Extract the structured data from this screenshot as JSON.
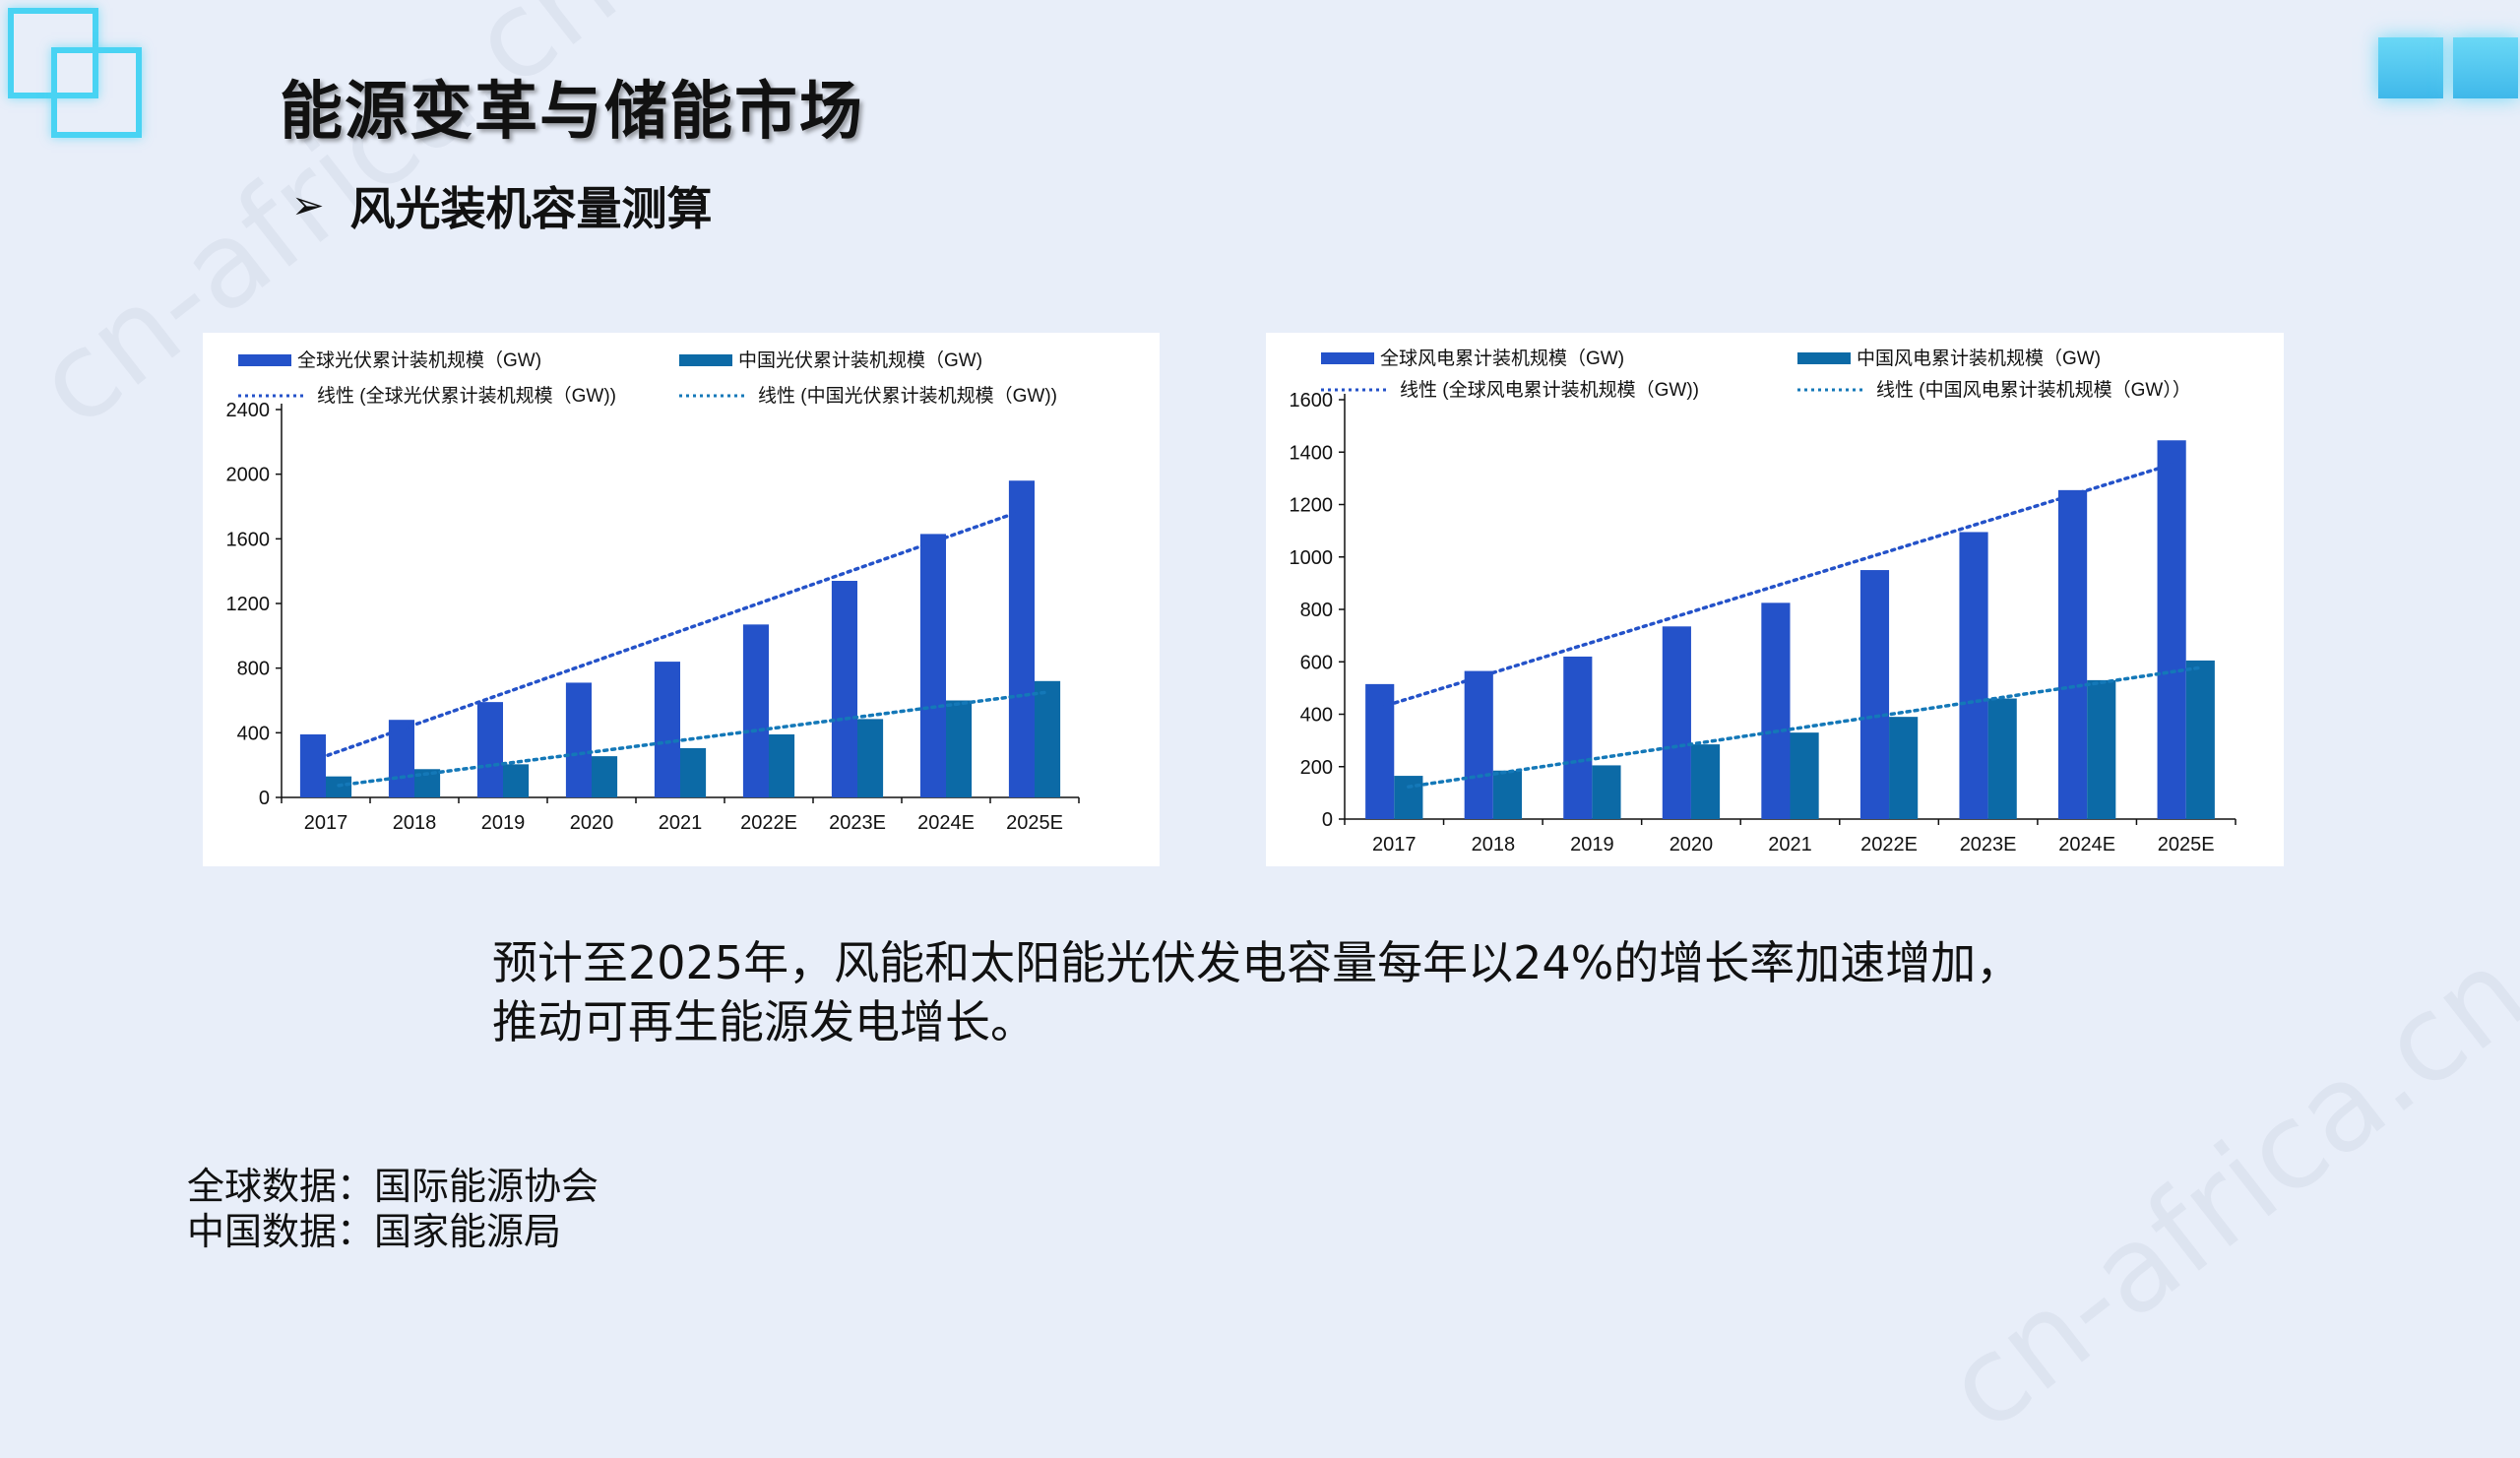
{
  "title": "能源变革与储能市场",
  "subtitle": "风光装机容量测算",
  "subtitle_bullet": "➢",
  "watermark": "cn-africa.cn",
  "summary_line1": "预计至2025年，风能和太阳能光伏发电容量每年以24%的增长率加速增加，",
  "summary_line2": "推动可再生能源发电增长。",
  "sources": {
    "global": "全球数据：国际能源协会",
    "china": "中国数据：国家能源局"
  },
  "colors": {
    "global_bar": "#2452c9",
    "china_bar": "#0c6aa6",
    "trend_global": "#2452c9",
    "trend_china": "#1478b8",
    "background": "#e8eef9",
    "accent": "#49d3f3"
  },
  "chart_data": [
    {
      "type": "bar",
      "categories": [
        "2017",
        "2018",
        "2019",
        "2020",
        "2021",
        "2022E",
        "2023E",
        "2024E",
        "2025E"
      ],
      "series": [
        {
          "name": "全球光伏累计装机规模（GW)",
          "values": [
            390,
            480,
            590,
            710,
            840,
            1070,
            1340,
            1630,
            1960
          ]
        },
        {
          "name": "中国光伏累计装机规模（GW)",
          "values": [
            130,
            175,
            205,
            255,
            305,
            390,
            485,
            600,
            720
          ]
        }
      ],
      "trendlines": [
        {
          "name": "线性 (全球光伏累计装机规模（GW))",
          "of": 0
        },
        {
          "name": "线性 (中国光伏累计装机规模（GW))",
          "of": 1
        }
      ],
      "ylim": [
        0,
        2400
      ],
      "yticks": [
        0,
        400,
        800,
        1200,
        1600,
        2000,
        2400
      ],
      "legend": "top",
      "grid": false
    },
    {
      "type": "bar",
      "categories": [
        "2017",
        "2018",
        "2019",
        "2020",
        "2021",
        "2022E",
        "2023E",
        "2024E",
        "2025E"
      ],
      "series": [
        {
          "name": "全球风电累计装机规模（GW)",
          "values": [
            515,
            565,
            620,
            735,
            825,
            950,
            1095,
            1255,
            1445
          ]
        },
        {
          "name": "中国风电累计装机规模（GW)",
          "values": [
            165,
            185,
            205,
            285,
            330,
            390,
            460,
            530,
            605
          ]
        }
      ],
      "trendlines": [
        {
          "name": "线性 (全球风电累计装机规模（GW))",
          "of": 0
        },
        {
          "name": "线性 (中国风电累计装机规模（GW））",
          "of": 1
        }
      ],
      "ylim": [
        0,
        1600
      ],
      "yticks": [
        0,
        200,
        400,
        600,
        800,
        1000,
        1200,
        1400,
        1600
      ],
      "legend": "top",
      "grid": false
    }
  ]
}
